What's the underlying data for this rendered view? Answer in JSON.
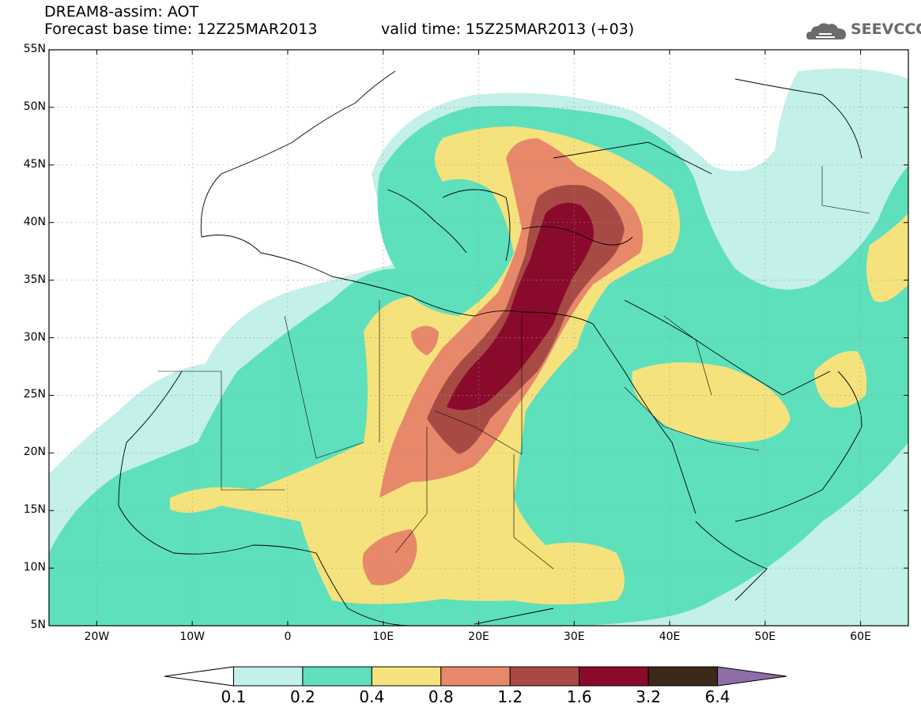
{
  "header": {
    "model_title": "DREAM8-assim: AOT",
    "base_time": "Forecast base time: 12Z25MAR2013",
    "valid_time": "valid time: 15Z25MAR2013 (+03)",
    "logo_text": "SEEVCCC"
  },
  "map": {
    "lon_range": [
      -25,
      65
    ],
    "lat_range": [
      5,
      55
    ],
    "lat_labels": [
      "55N",
      "50N",
      "45N",
      "40N",
      "35N",
      "30N",
      "25N",
      "20N",
      "15N",
      "10N",
      "5N"
    ],
    "lat_values": [
      55,
      50,
      45,
      40,
      35,
      30,
      25,
      20,
      15,
      10,
      5
    ],
    "lon_labels": [
      "20W",
      "10W",
      "0",
      "10E",
      "20E",
      "30E",
      "40E",
      "50E",
      "60E"
    ],
    "lon_values": [
      -20,
      -10,
      0,
      10,
      20,
      30,
      40,
      50,
      60
    ],
    "fill_colors": {
      "c01": "#c3f0e9",
      "c02": "#5ee0bd",
      "c04": "#f5e27c",
      "c08": "#e8886a",
      "c12": "#a84a44",
      "c16": "#8a0a2c",
      "c32": "#3c2818",
      "c64": "#8e6ea8"
    }
  },
  "colorbar": {
    "labels": [
      "0.1",
      "0.2",
      "0.4",
      "0.8",
      "1.2",
      "1.6",
      "3.2",
      "6.4"
    ],
    "colors": [
      "#ffffff",
      "#c3f0e9",
      "#5ee0bd",
      "#f5e27c",
      "#e8886a",
      "#a84a44",
      "#8a0a2c",
      "#3c2818",
      "#8e6ea8"
    ]
  }
}
